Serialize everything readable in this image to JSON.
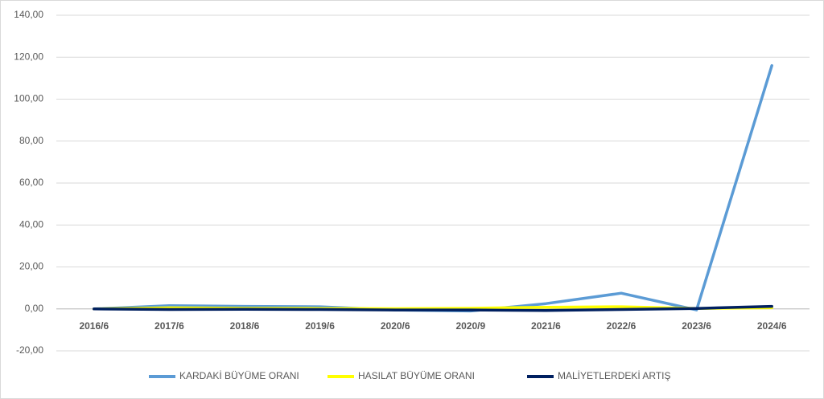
{
  "chart_data": {
    "type": "line",
    "categories": [
      "2016/6",
      "2017/6",
      "2018/6",
      "2019/6",
      "2020/6",
      "2020/9",
      "2021/6",
      "2022/6",
      "2023/6",
      "2024/6"
    ],
    "series": [
      {
        "name": "KARDAKİ BÜYÜME ORANI",
        "color": "#5b9bd5",
        "values": [
          0,
          1.5,
          1.2,
          1.0,
          -0.5,
          -1.0,
          2.5,
          7.5,
          -0.5,
          116
        ]
      },
      {
        "name": "HASILAT BÜYÜME ORANI",
        "color": "#ffff00",
        "values": [
          0,
          0.5,
          0.3,
          0.2,
          0.1,
          0.3,
          0.8,
          1.0,
          0.2,
          0.5
        ]
      },
      {
        "name": "MALİYETLERDEKİ ARTIŞ",
        "color": "#002060",
        "values": [
          0,
          -0.3,
          -0.2,
          -0.3,
          -0.5,
          -0.5,
          -0.8,
          -0.3,
          0.2,
          1.2
        ]
      }
    ],
    "ylim": [
      -20,
      140
    ],
    "yticks": [
      {
        "value": -20,
        "label": "-20,00"
      },
      {
        "value": 0,
        "label": "0,00"
      },
      {
        "value": 20,
        "label": "20,00"
      },
      {
        "value": 40,
        "label": "40,00"
      },
      {
        "value": 60,
        "label": "60,00"
      },
      {
        "value": 80,
        "label": "80,00"
      },
      {
        "value": 100,
        "label": "100,00"
      },
      {
        "value": 120,
        "label": "120,00"
      },
      {
        "value": 140,
        "label": "140,00"
      }
    ],
    "grid": true,
    "legend": "bottom"
  }
}
